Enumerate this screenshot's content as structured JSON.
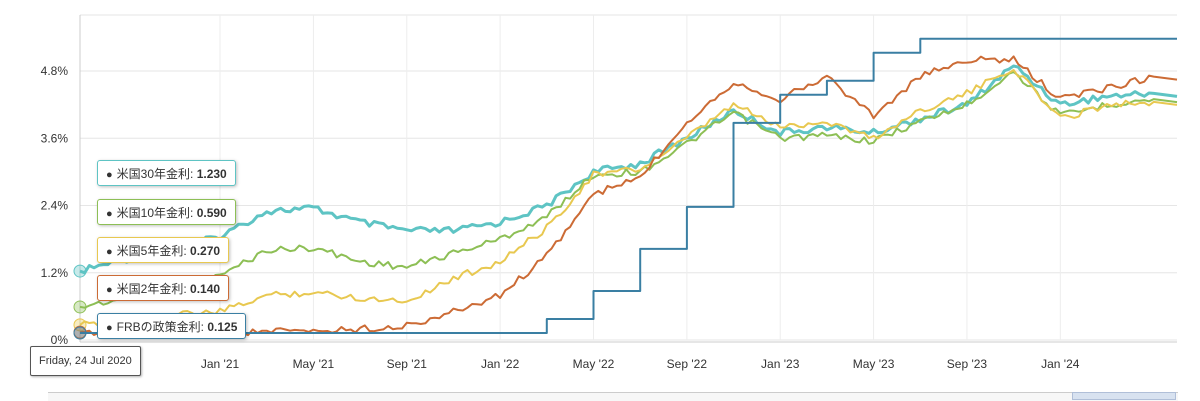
{
  "chart_data": {
    "type": "line",
    "title": "",
    "xlabel": "",
    "ylabel": "",
    "x_ticks": [
      "Jan '21",
      "May '21",
      "Sep '21",
      "Jan '22",
      "May '22",
      "Sep '22",
      "Jan '23",
      "May '23",
      "Sep '23",
      "Jan '24"
    ],
    "y_ticks": [
      "0%",
      "1.2%",
      "2.4%",
      "3.6%",
      "4.8%"
    ],
    "ylim": [
      0,
      5.8
    ],
    "x_range": [
      "2020-07",
      "2024-06"
    ],
    "grid": true,
    "x": [
      "2020-07",
      "2020-09",
      "2020-11",
      "2021-01",
      "2021-03",
      "2021-05",
      "2021-07",
      "2021-09",
      "2021-11",
      "2022-01",
      "2022-03",
      "2022-05",
      "2022-07",
      "2022-09",
      "2022-11",
      "2023-01",
      "2023-03",
      "2023-05",
      "2023-07",
      "2023-09",
      "2023-11",
      "2024-01",
      "2024-03",
      "2024-05"
    ],
    "series": [
      {
        "name": "米国30年金利",
        "color": "#5ec4c4",
        "values": [
          1.23,
          1.45,
          1.6,
          1.85,
          2.3,
          2.35,
          2.1,
          1.95,
          1.95,
          2.1,
          2.4,
          3.0,
          3.15,
          3.6,
          4.1,
          3.7,
          3.8,
          3.7,
          3.95,
          4.2,
          4.9,
          4.2,
          4.35,
          4.4
        ]
      },
      {
        "name": "米国10年金利",
        "color": "#8dbf55",
        "values": [
          0.59,
          0.75,
          0.85,
          1.15,
          1.6,
          1.65,
          1.4,
          1.3,
          1.55,
          1.8,
          2.2,
          2.95,
          3.0,
          3.5,
          4.05,
          3.6,
          3.65,
          3.55,
          3.9,
          4.2,
          4.8,
          4.0,
          4.2,
          4.3
        ]
      },
      {
        "name": "米国5年金利",
        "color": "#e8c850",
        "values": [
          0.27,
          0.35,
          0.45,
          0.5,
          0.8,
          0.85,
          0.75,
          0.7,
          1.1,
          1.4,
          2.0,
          2.95,
          3.05,
          3.6,
          4.2,
          3.8,
          3.9,
          3.6,
          4.1,
          4.4,
          4.85,
          3.95,
          4.2,
          4.25
        ]
      },
      {
        "name": "米国2年金利",
        "color": "#cc6b35",
        "values": [
          0.14,
          0.14,
          0.15,
          0.13,
          0.15,
          0.16,
          0.2,
          0.25,
          0.5,
          0.8,
          1.5,
          2.6,
          2.9,
          3.9,
          4.6,
          4.3,
          4.7,
          4.0,
          4.7,
          5.0,
          5.0,
          4.3,
          4.5,
          4.7
        ]
      },
      {
        "name": "FRBの政策金利",
        "color": "#3a7fa3",
        "values": [
          0.125,
          0.125,
          0.125,
          0.125,
          0.125,
          0.125,
          0.125,
          0.125,
          0.125,
          0.125,
          0.375,
          0.875,
          1.625,
          2.375,
          3.875,
          4.375,
          4.625,
          5.125,
          5.375,
          5.375,
          5.375,
          5.375,
          5.375,
          5.375
        ]
      }
    ]
  },
  "tooltip": {
    "date": "Friday, 24 Jul 2020",
    "rows": [
      {
        "label": "米国30年金利",
        "value": "1.230"
      },
      {
        "label": "米国10年金利",
        "value": "0.590"
      },
      {
        "label": "米国5年金利",
        "value": "0.270"
      },
      {
        "label": "米国2年金利",
        "value": "0.140"
      },
      {
        "label": "FRBの政策金利",
        "value": "0.125"
      }
    ]
  }
}
